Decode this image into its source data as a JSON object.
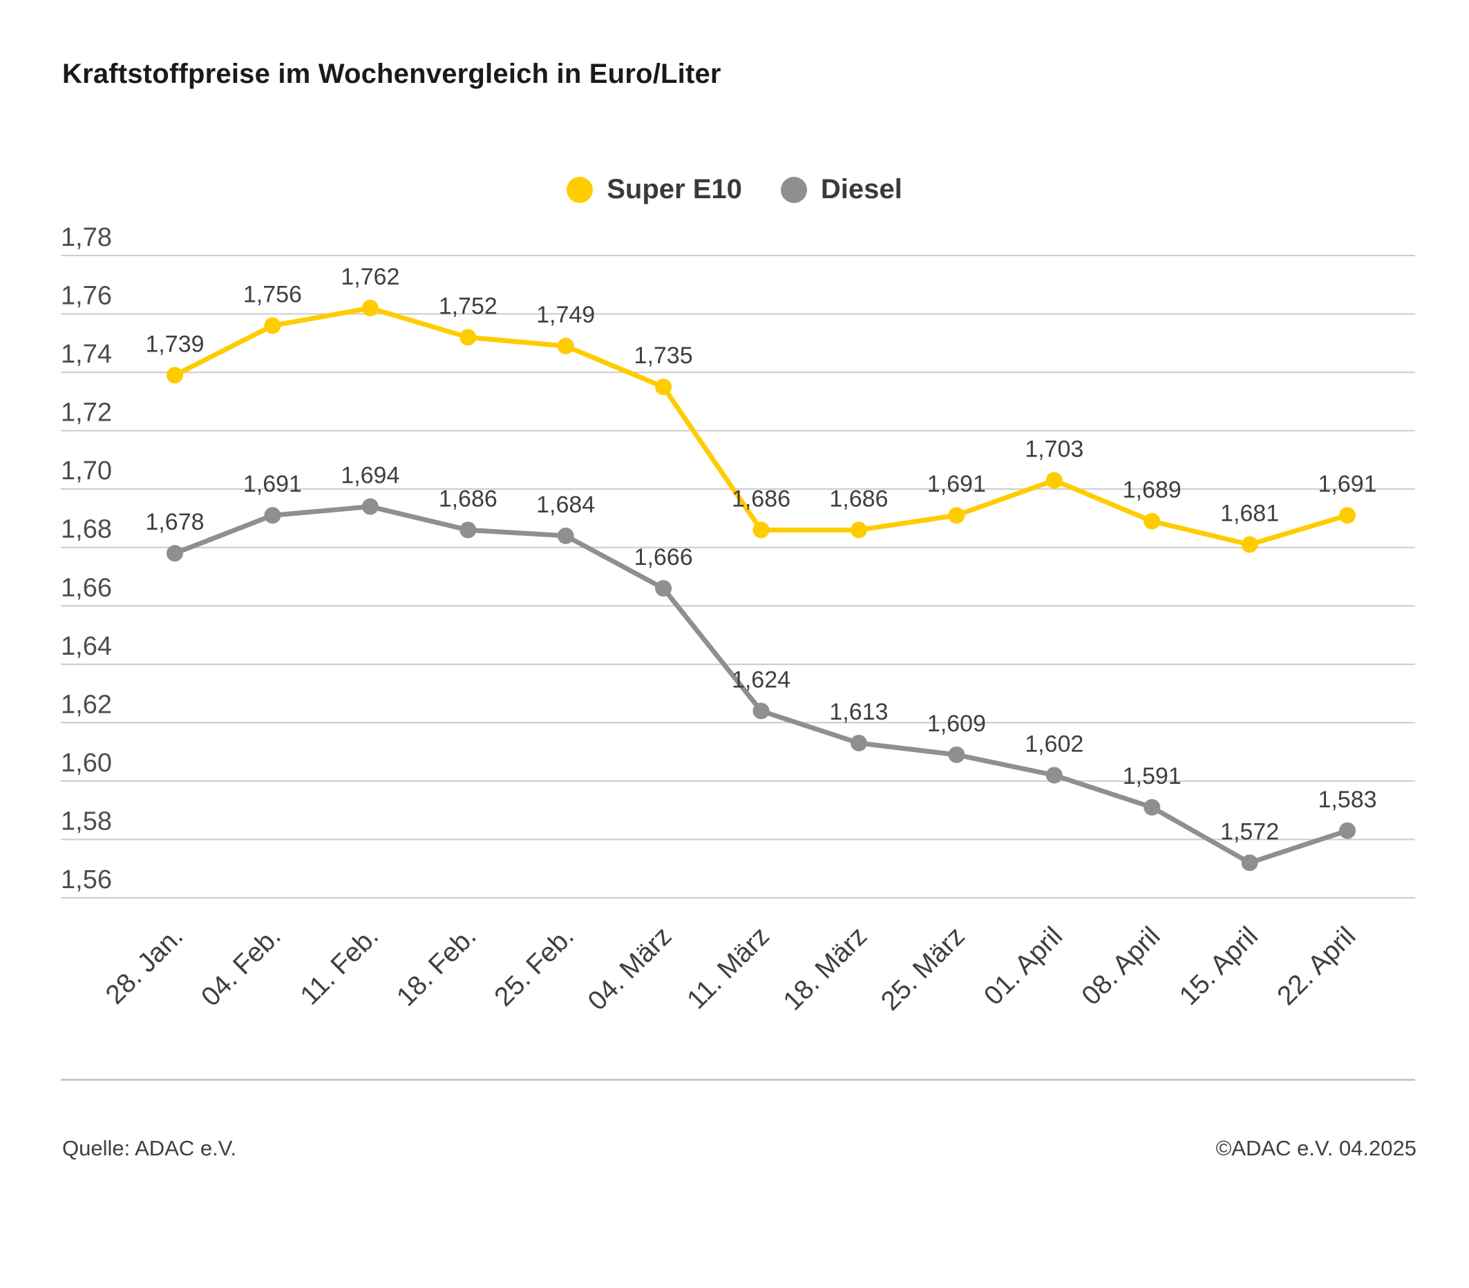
{
  "title": "Kraftstoffpreise im Wochenvergleich in Euro/Liter",
  "footer": {
    "source": "Quelle: ADAC e.V.",
    "copyright": "©ADAC e.V. 04.2025"
  },
  "colors": {
    "super_e10": "#FFCC00",
    "diesel": "#8F8F8F",
    "gridline": "#CBCBCB",
    "axis_label": "#4d4d4d",
    "point_label": "#3f3f3f"
  },
  "chart_data": {
    "type": "line",
    "title": "Kraftstoffpreise im Wochenvergleich in Euro/Liter",
    "categories": [
      "28. Jan.",
      "04. Feb.",
      "11. Feb.",
      "18. Feb.",
      "25. Feb.",
      "04. März",
      "11. März",
      "18. März",
      "25. März",
      "01. April",
      "08. April",
      "15. April",
      "22. April"
    ],
    "series": [
      {
        "name": "Super E10",
        "color": "#FFCC00",
        "values": [
          1.739,
          1.756,
          1.762,
          1.752,
          1.749,
          1.735,
          1.686,
          1.686,
          1.691,
          1.703,
          1.689,
          1.681,
          1.691
        ]
      },
      {
        "name": "Diesel",
        "color": "#8F8F8F",
        "values": [
          1.678,
          1.691,
          1.694,
          1.686,
          1.684,
          1.666,
          1.624,
          1.613,
          1.609,
          1.602,
          1.591,
          1.572,
          1.583
        ]
      }
    ],
    "xlabel": "",
    "ylabel": "Euro/Liter",
    "ylim": [
      1.56,
      1.78
    ],
    "yticks": [
      1.78,
      1.76,
      1.74,
      1.72,
      1.7,
      1.68,
      1.66,
      1.64,
      1.62,
      1.6,
      1.58,
      1.56
    ],
    "ytick_step": 0.02,
    "grid": true,
    "legend_position": "top-center",
    "decimal_separator": ",",
    "point_labels": true
  }
}
